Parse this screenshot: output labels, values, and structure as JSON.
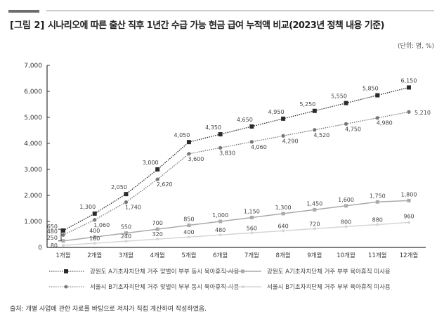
{
  "figure_label": "[그림 2]",
  "title": "시나리오에 따른 출산 직후 1년간 수급 가능 현금 급여 누적액 비교(2023년 정책 내용 기준)",
  "unit": "(단위: 명, %)",
  "source": "출처: 개별 사업에 관한 자료를 바탕으로 저자가 직접 계산하여 작성하였음.",
  "chart_data": {
    "type": "line",
    "categories": [
      "1개월",
      "2개월",
      "3개월",
      "4개월",
      "5개월",
      "6개월",
      "7개월",
      "8개월",
      "9개월",
      "10개월",
      "11개월",
      "12개월"
    ],
    "ylim": [
      0,
      7000
    ],
    "yticks": [
      "0",
      "1,000",
      "2,000",
      "3,000",
      "4,000",
      "5,000",
      "6,000",
      "7,000"
    ],
    "grid": false,
    "legend_placement": "bottom",
    "series": [
      {
        "name": "강원도 A기초자치단체 거주 맞벌이 부부 동시 육아휴직 사용",
        "color": "#2b2b2b",
        "marker": "square",
        "line": "dotted",
        "values": [
          650,
          1300,
          2050,
          3000,
          4050,
          4350,
          4650,
          4950,
          5250,
          5550,
          5850,
          6150
        ]
      },
      {
        "name": "서울시 B기초자치단체 거주 맞벌이 부부 동시 육아휴직 사용",
        "color": "#777777",
        "marker": "circle",
        "line": "dotted",
        "values": [
          480,
          1060,
          1740,
          2620,
          3600,
          3830,
          4060,
          4290,
          4520,
          4750,
          4980,
          5210
        ]
      },
      {
        "name": "강원도 A기초자치단체 거주 부부 육아휴직 미사용",
        "color": "#aaaaaa",
        "marker": "square",
        "line": "solid",
        "values": [
          250,
          400,
          550,
          700,
          850,
          1000,
          1150,
          1300,
          1450,
          1600,
          1750,
          1800
        ]
      },
      {
        "name": "서울시 B기초자치단체 거주 부부 육아휴직 미사용",
        "color": "#d6d6d6",
        "marker": "circle",
        "line": "solid",
        "values": [
          80,
          160,
          240,
          320,
          400,
          480,
          560,
          640,
          720,
          800,
          880,
          960
        ]
      }
    ]
  }
}
